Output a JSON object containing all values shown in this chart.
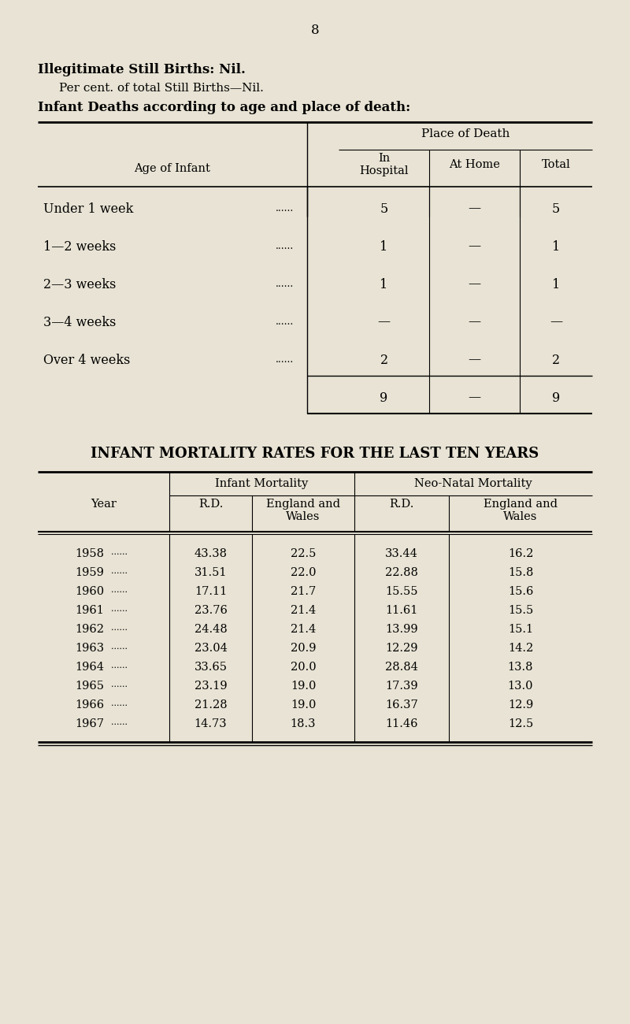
{
  "bg_color": "#e8e3d4",
  "page_number": "8",
  "header_line1_bold": "Illegitimate Still Births: ",
  "header_line1_normal": "Nil.",
  "header_line2": "Per cent. of total Still Births—Nil.",
  "header_line3": "Infant Deaths according to age and place of death:",
  "place_of_death_label": "Place of Death",
  "table1_col_headers": [
    "Age of Infant",
    "In\nHospital",
    "At Home",
    "Total"
  ],
  "table1_rows": [
    [
      "Under 1 week",
      "5",
      "—",
      "5"
    ],
    [
      "1—2 weeks",
      "1",
      "—",
      "1"
    ],
    [
      "2—3 weeks",
      "1",
      "—",
      "1"
    ],
    [
      "3—4 weeks",
      "—",
      "—",
      "—"
    ],
    [
      "Over 4 weeks",
      "2",
      "—",
      "2"
    ],
    [
      "",
      "9",
      "—",
      "9"
    ]
  ],
  "table2_title": "INFANT MORTALITY RATES FOR THE LAST TEN YEARS",
  "table2_group_headers": [
    "Infant Mortality",
    "Neo-Natal Mortality"
  ],
  "table2_col_headers": [
    "Year",
    "R.D.",
    "England and\nWales",
    "R.D.",
    "England and\nWales"
  ],
  "table2_rows": [
    [
      "1958",
      "43.38",
      "22.5",
      "33.44",
      "16.2"
    ],
    [
      "1959",
      "31.51",
      "22.0",
      "22.88",
      "15.8"
    ],
    [
      "1960",
      "17.11",
      "21.7",
      "15.55",
      "15.6"
    ],
    [
      "1961",
      "23.76",
      "21.4",
      "11.61",
      "15.5"
    ],
    [
      "1962",
      "24.48",
      "21.4",
      "13.99",
      "15.1"
    ],
    [
      "1963",
      "23.04",
      "20.9",
      "12.29",
      "14.2"
    ],
    [
      "1964",
      "33.65",
      "20.0",
      "28.84",
      "13.8"
    ],
    [
      "1965",
      "23.19",
      "19.0",
      "17.39",
      "13.0"
    ],
    [
      "1966",
      "21.28",
      "19.0",
      "16.37",
      "12.9"
    ],
    [
      "1967",
      "14.73",
      "18.3",
      "11.46",
      "12.5"
    ]
  ]
}
